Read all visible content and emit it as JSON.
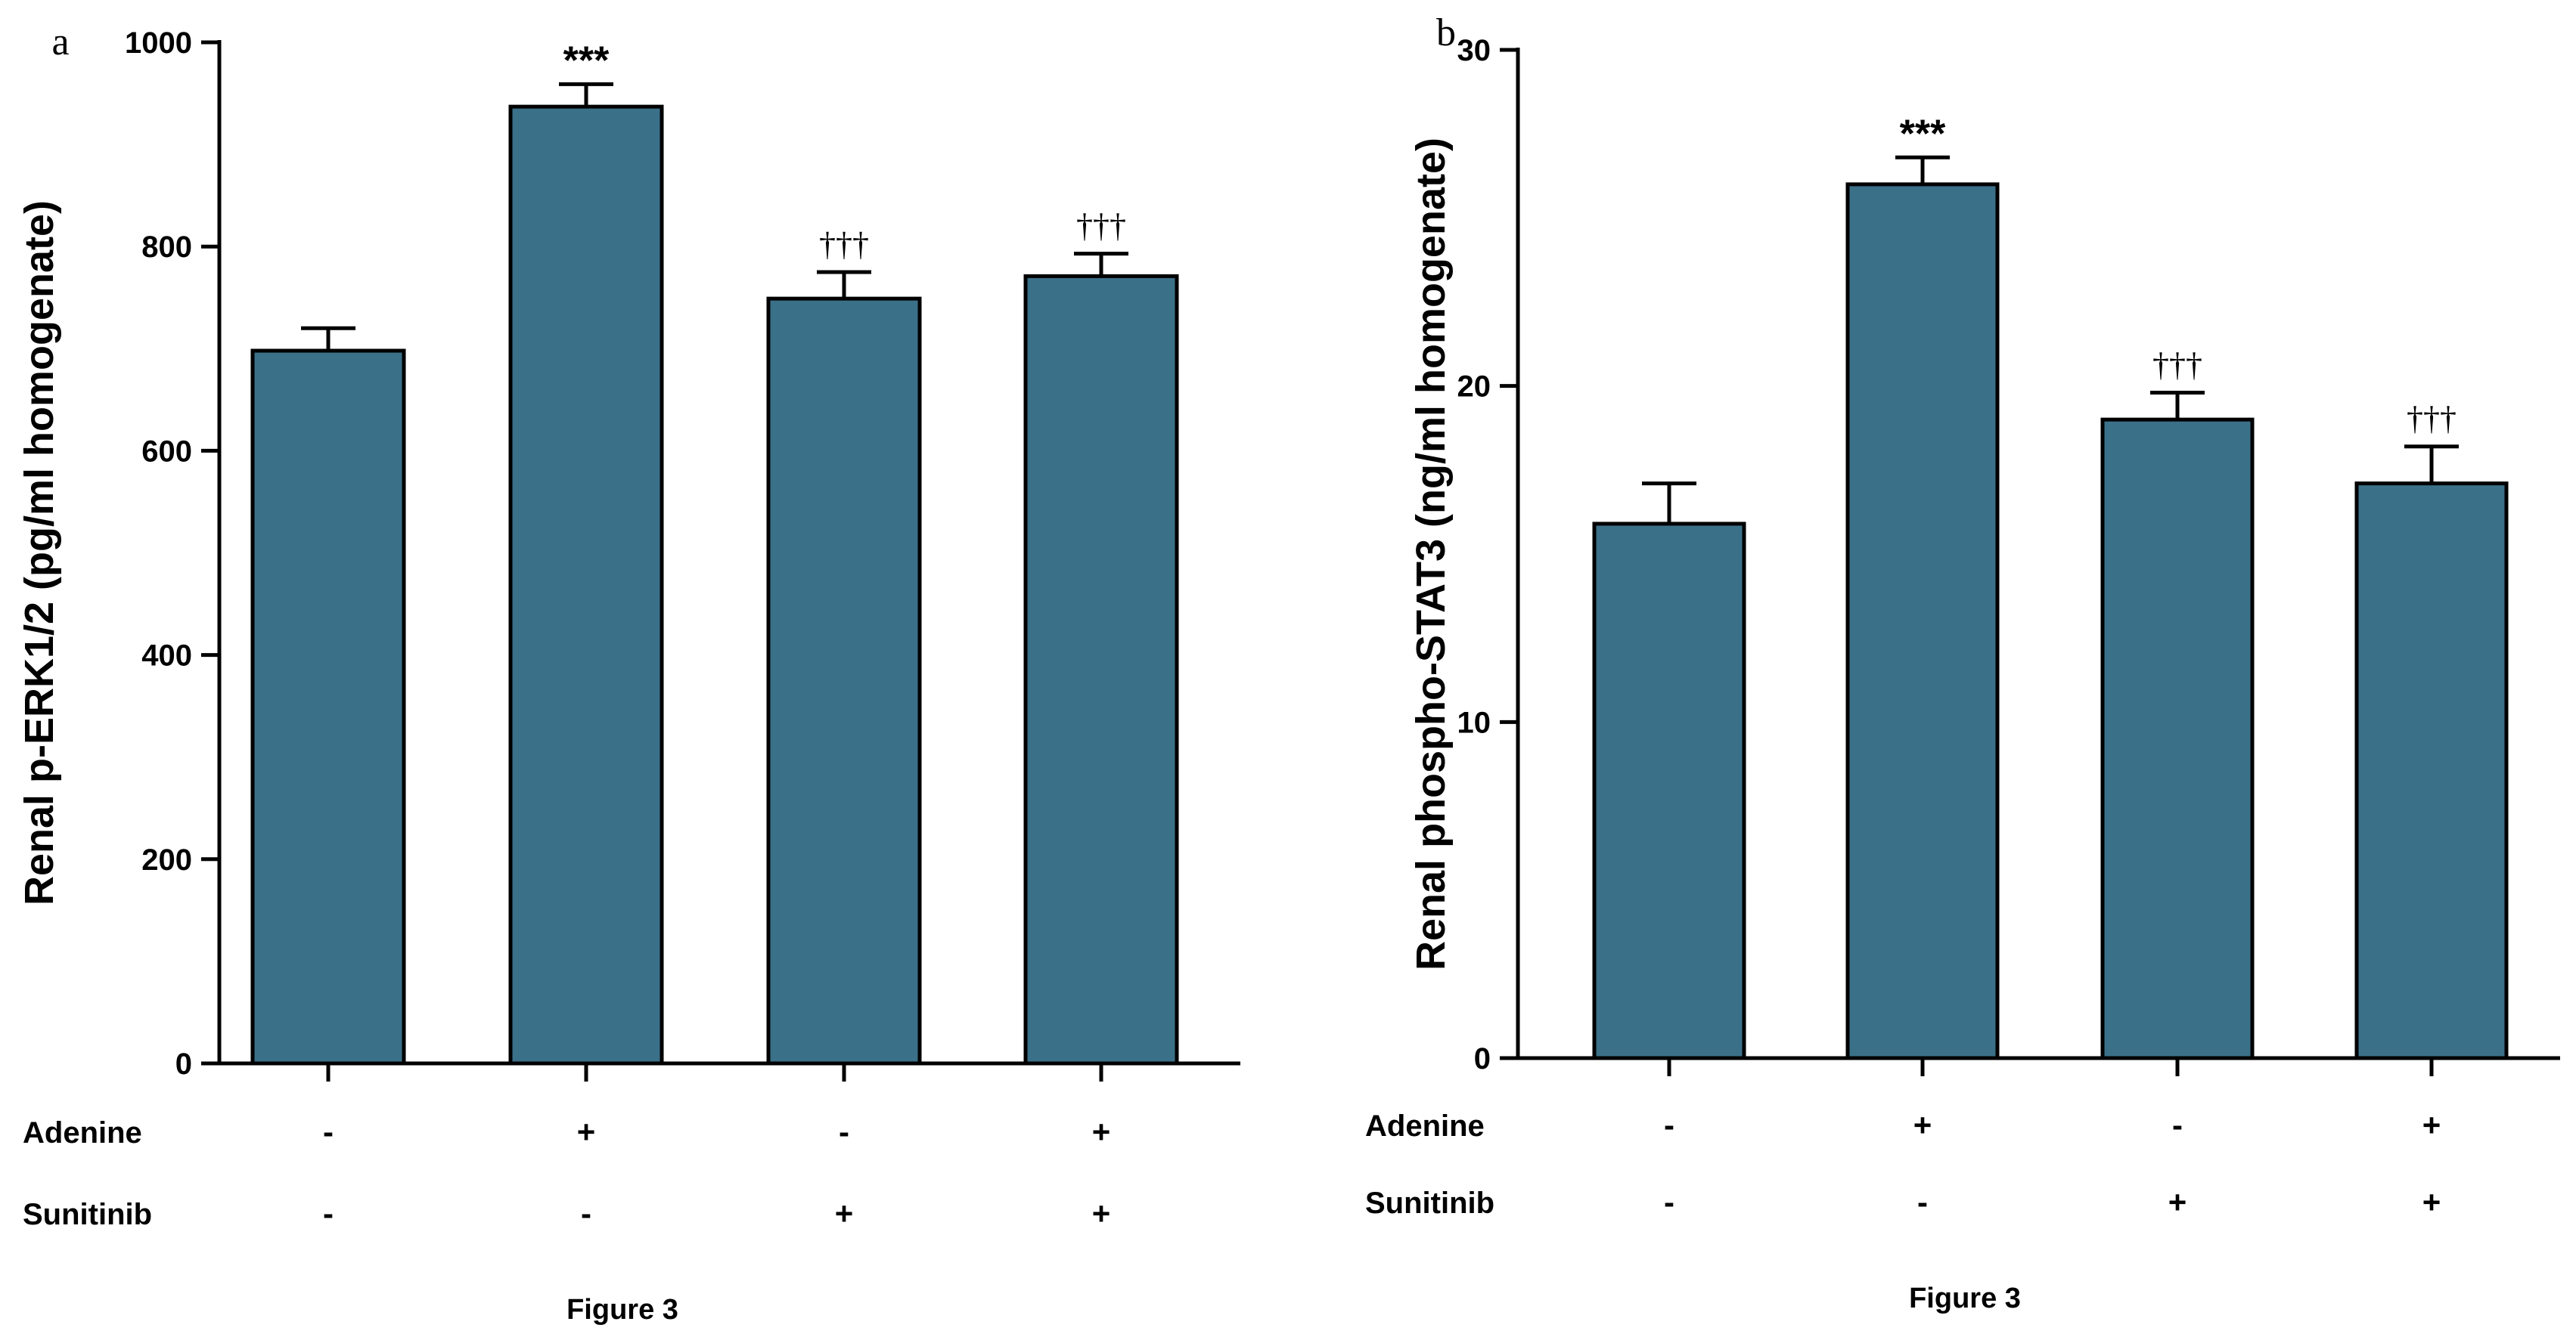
{
  "charts": [
    {
      "panel_label": "a",
      "footer": "Figure 3",
      "bar_color": "#3b7089",
      "rows": [
        {
          "label": "Adenine",
          "values": [
            "-",
            "+",
            "-",
            "+"
          ]
        },
        {
          "label": "Sunitinib",
          "values": [
            "-",
            "-",
            "+",
            "+"
          ]
        }
      ]
    },
    {
      "panel_label": "b",
      "footer": "Figure 3",
      "bar_color": "#3b7089",
      "rows": [
        {
          "label": "Adenine",
          "values": [
            "-",
            "+",
            "-",
            "+"
          ]
        },
        {
          "label": "Sunitinib",
          "values": [
            "-",
            "-",
            "+",
            "+"
          ]
        }
      ]
    }
  ],
  "chart_data": [
    {
      "type": "bar",
      "title": "",
      "ylabel": "Renal p-ERK1/2 (pg/ml homogenate)",
      "xlabel": "",
      "categories": [
        "Adenine - / Sunitinib -",
        "Adenine + / Sunitinib -",
        "Adenine - / Sunitinib +",
        "Adenine + / Sunitinib +"
      ],
      "values": [
        698,
        937,
        749,
        771
      ],
      "errors": [
        22,
        22,
        26,
        22
      ],
      "annotations": [
        "",
        "***",
        "†††",
        "†††"
      ],
      "ylim": [
        0,
        1000
      ],
      "yticks": [
        0,
        200,
        400,
        600,
        800,
        1000
      ],
      "grid": false
    },
    {
      "type": "bar",
      "title": "",
      "ylabel": "Renal phospho-STAT3 (ng/ml homogenate)",
      "xlabel": "",
      "categories": [
        "Adenine - / Sunitinib -",
        "Adenine + / Sunitinib -",
        "Adenine - / Sunitinib +",
        "Adenine + / Sunitinib +"
      ],
      "values": [
        15.9,
        26.0,
        19.0,
        17.1
      ],
      "errors": [
        1.2,
        0.8,
        0.8,
        1.1
      ],
      "annotations": [
        "",
        "***",
        "†††",
        "†††"
      ],
      "ylim": [
        0,
        30
      ],
      "yticks": [
        0,
        10,
        20,
        30
      ],
      "grid": false
    }
  ]
}
